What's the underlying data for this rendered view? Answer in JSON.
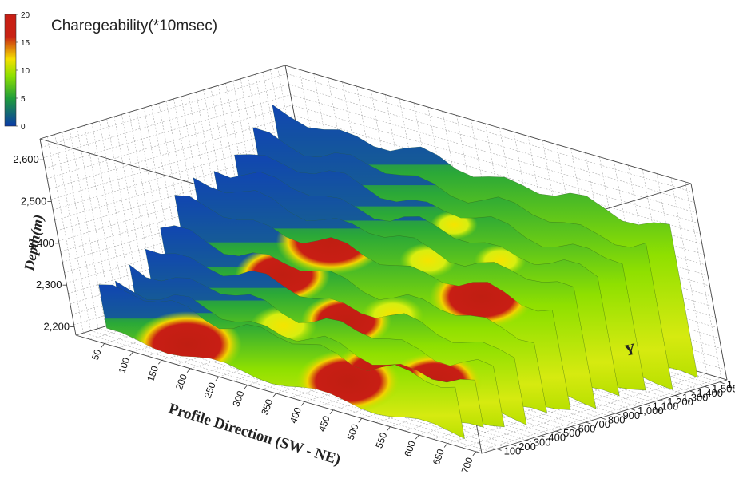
{
  "chart_data": {
    "type": "heatmap",
    "title": "Charegeability(*10msec)",
    "xlabel": "Profile Direction  (SW - NE)",
    "ylabel": "Y",
    "zlabel": "Depth(m)",
    "x_ticks": [
      "50",
      "100",
      "150",
      "200",
      "250",
      "300",
      "350",
      "400",
      "450",
      "500",
      "550",
      "600",
      "650",
      "700"
    ],
    "y_ticks": [
      "100",
      "200",
      "300",
      "400",
      "500",
      "600",
      "700",
      "800",
      "900",
      "1,000",
      "1,100",
      "1,200",
      "1,300",
      "1,400",
      "1,500",
      "1,600"
    ],
    "z_ticks": [
      "2,200",
      "2,300",
      "2,400",
      "2,500",
      "2,600"
    ],
    "xlim": [
      0,
      710
    ],
    "ylim": [
      0,
      1650
    ],
    "zlim": [
      2180,
      2650
    ],
    "colorbar": {
      "ticks": [
        "0",
        "5",
        "10",
        "15",
        "20"
      ],
      "range": [
        0,
        20
      ],
      "colors": [
        "#0a3aa8",
        "#1f9d3a",
        "#8ee000",
        "#f5e000",
        "#c81e14"
      ]
    },
    "sections": [
      {
        "y": 60,
        "top_m": 2310,
        "anomalies": [
          {
            "x": 185,
            "z": 2225,
            "value": 19
          },
          {
            "x": 470,
            "z": 2250,
            "value": 18
          }
        ]
      },
      {
        "y": 180,
        "top_m": 2300,
        "anomalies": [
          {
            "x": 500,
            "z": 2270,
            "value": 17
          }
        ]
      },
      {
        "y": 300,
        "top_m": 2330,
        "anomalies": [
          {
            "x": 560,
            "z": 2260,
            "value": 16
          },
          {
            "x": 300,
            "z": 2290,
            "value": 10
          }
        ]
      },
      {
        "y": 430,
        "top_m": 2360,
        "anomalies": [
          {
            "x": 380,
            "z": 2320,
            "value": 15
          }
        ]
      },
      {
        "y": 560,
        "top_m": 2390,
        "anomalies": [
          {
            "x": 240,
            "z": 2360,
            "value": 16
          },
          {
            "x": 430,
            "z": 2340,
            "value": 9
          }
        ]
      },
      {
        "y": 700,
        "top_m": 2440,
        "anomalies": [
          {
            "x": 300,
            "z": 2450,
            "value": 19
          },
          {
            "x": 560,
            "z": 2420,
            "value": 18
          }
        ]
      },
      {
        "y": 850,
        "top_m": 2470,
        "anomalies": [
          {
            "x": 430,
            "z": 2440,
            "value": 8
          }
        ]
      },
      {
        "y": 1000,
        "top_m": 2490,
        "anomalies": [
          {
            "x": 520,
            "z": 2460,
            "value": 7
          }
        ]
      },
      {
        "y": 1160,
        "top_m": 2510,
        "anomalies": [
          {
            "x": 400,
            "z": 2480,
            "value": 6
          }
        ]
      },
      {
        "y": 1320,
        "top_m": 2530,
        "anomalies": []
      },
      {
        "y": 1480,
        "top_m": 2560,
        "anomalies": []
      }
    ],
    "grid": true
  }
}
